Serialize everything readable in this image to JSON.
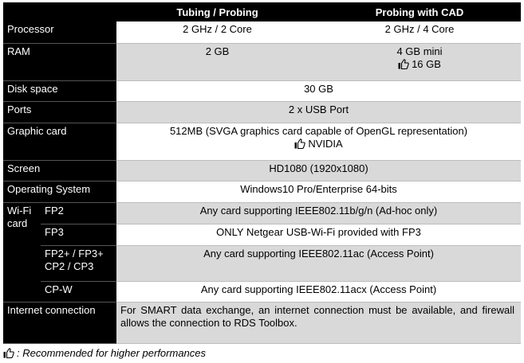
{
  "header": {
    "col1": "Tubing / Probing",
    "col2": "Probing with CAD"
  },
  "rows": {
    "processor": {
      "label": "Processor",
      "col1": "2 GHz / 2 Core",
      "col2": "2 GHz / 4 Core"
    },
    "ram": {
      "label": "RAM",
      "col1": "2 GB",
      "col2": "4 GB mini",
      "col2_recommended": "16 GB"
    },
    "disk": {
      "label": "Disk space",
      "value": "30 GB"
    },
    "ports": {
      "label": "Ports",
      "value": "2 x USB Port"
    },
    "graphic": {
      "label": "Graphic card",
      "value": "512MB (SVGA graphics card capable of OpenGL representation)",
      "recommended": "NVIDIA"
    },
    "screen": {
      "label": "Screen",
      "value": "HD1080 (1920x1080)"
    },
    "os": {
      "label": "Operating System",
      "value": "Windows10 Pro/Enterprise 64-bits"
    },
    "wifi": {
      "label": "Wi-Fi card",
      "items": [
        {
          "label": "FP2",
          "value": "Any card supporting IEEE802.11b/g/n (Ad-hoc only)"
        },
        {
          "label": "FP3",
          "value": "ONLY Netgear USB-Wi-Fi provided with FP3"
        },
        {
          "label": "FP2+ / FP3+ CP2 / CP3",
          "value": "Any card supporting IEEE802.11ac (Access Point)"
        },
        {
          "label": "CP-W",
          "value": "Any card supporting IEEE802.11acx (Access Point)"
        }
      ]
    },
    "internet": {
      "label": "Internet connection",
      "value": "For SMART data exchange, an internet connection must be available, and firewall allows the connection to RDS Toolbox."
    }
  },
  "footnote": ": Recommended for higher performances",
  "icons": {
    "recommended": "thumbs-up-icon"
  },
  "colors": {
    "label_bg": "#000000",
    "stripe": "#d9d9d9"
  }
}
